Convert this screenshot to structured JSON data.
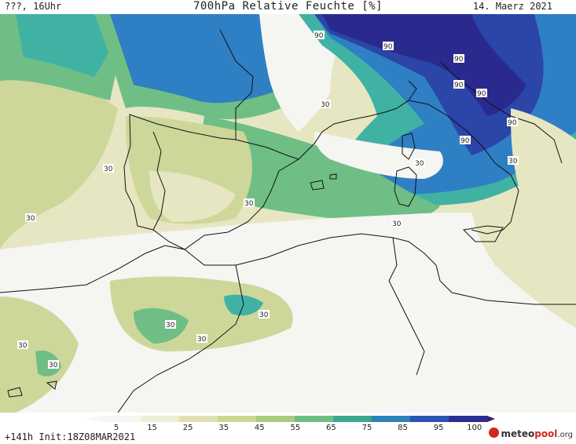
{
  "header": {
    "left": "???, 16Uhr",
    "title": "700hPa Relative Feuchte [%]",
    "date": "14. Maerz 2021"
  },
  "footer": {
    "init": "+141h Init:18Z08MAR2021",
    "logo_prefix": "meteo",
    "logo_brand": "pool",
    "logo_suffix": ".org"
  },
  "colorbar": {
    "labels": [
      "5",
      "15",
      "25",
      "35",
      "45",
      "55",
      "65",
      "75",
      "85",
      "95",
      "100"
    ],
    "colors": [
      "#f6f6f4",
      "#efefd8",
      "#e0e0b4",
      "#cdd795",
      "#a9cc7e",
      "#6fbe86",
      "#3aa78e",
      "#2e82b8",
      "#2b55b3",
      "#2a2e95",
      "#3a1b77"
    ]
  },
  "map_labels": {
    "contour_90": "90",
    "contour_30": "30"
  },
  "colors": {
    "dry": "#f5f5f2",
    "light": "#e6e6c2",
    "mid": "#cdd79a",
    "green": "#8ec98a",
    "teal": "#3fb2a4",
    "blue": "#2f7fc4",
    "deep": "#2b45a8",
    "navy": "#2a2a8e"
  }
}
